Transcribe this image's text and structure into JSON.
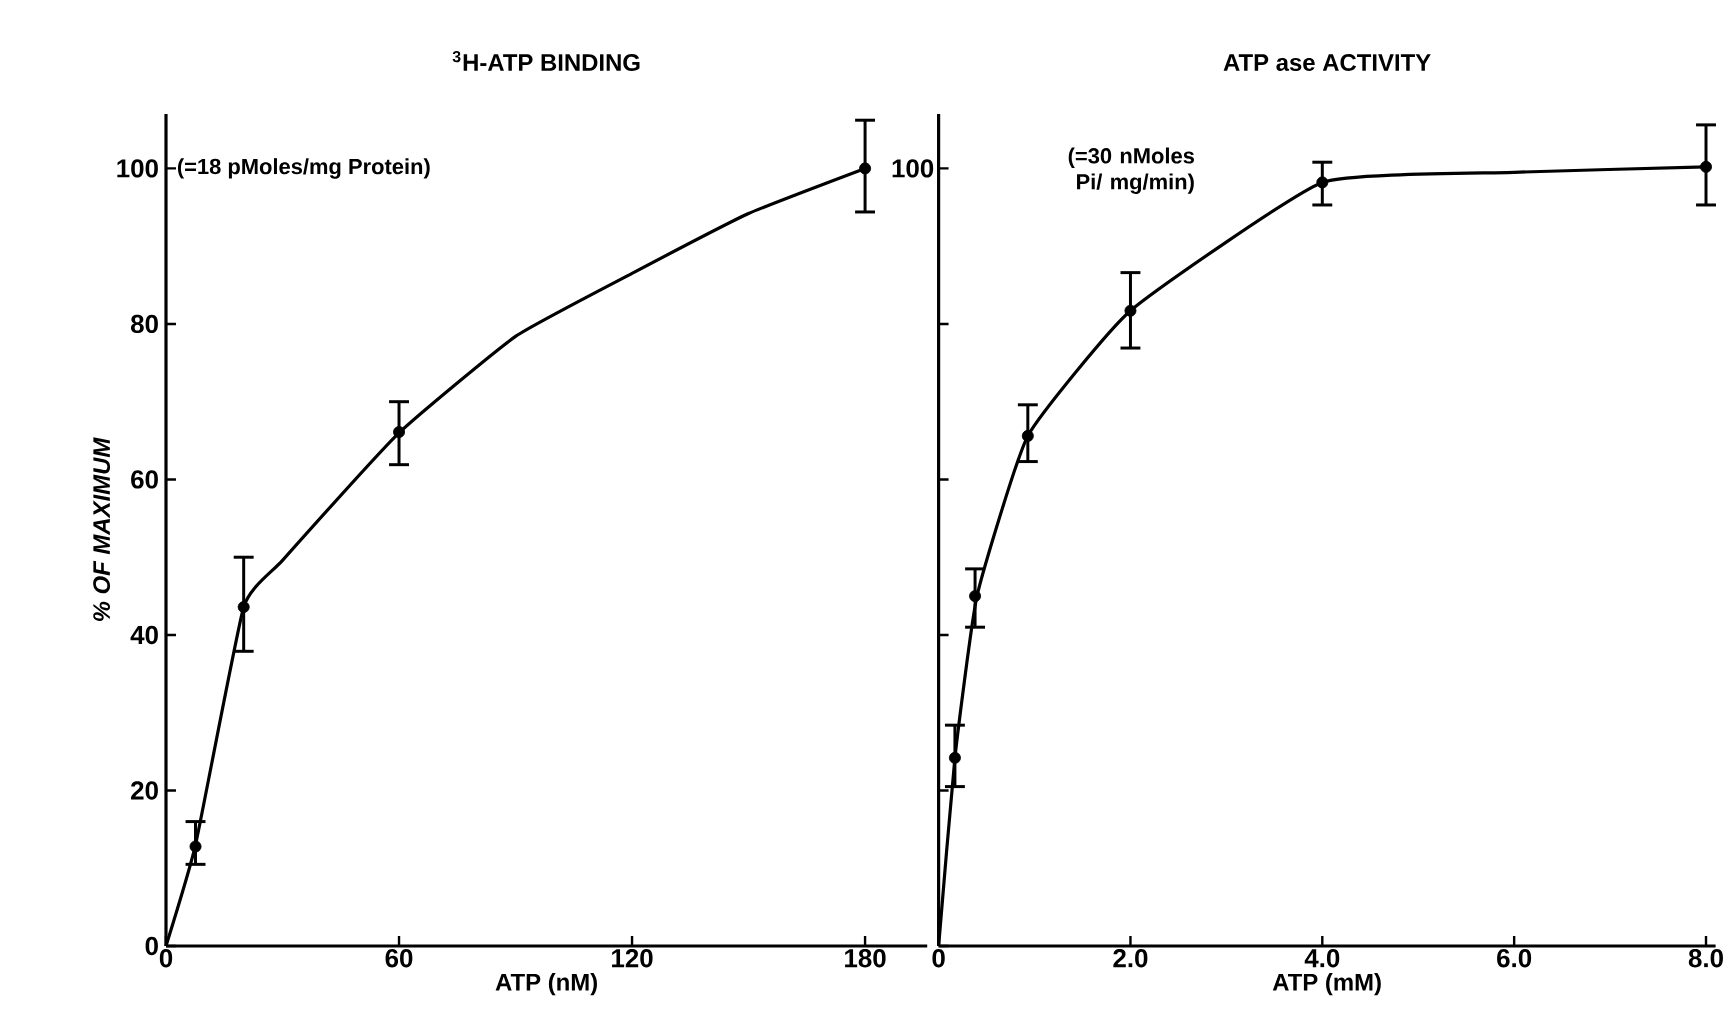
{
  "chart_data": [
    {
      "type": "line",
      "title": "$^{3}$H-ATP BINDING",
      "xlabel": "ATP (nM)",
      "ylabel": "% OF MAXIMUM",
      "xlim": [
        0,
        196
      ],
      "xticks": [
        0,
        60,
        120,
        180
      ],
      "ylim": [
        0,
        107
      ],
      "yticks": [
        0,
        20,
        40,
        60,
        80,
        100
      ],
      "annotations": [
        "(=18 pMoles/mg Protein)"
      ],
      "series": [
        {
          "type": "line",
          "marker": "none",
          "color": "#000000",
          "x": [
            0,
            7.6,
            20,
            30,
            60,
            90,
            120,
            150,
            180
          ],
          "values": [
            0,
            13,
            43.6,
            49.6,
            66,
            78.4,
            86.5,
            94.2,
            100
          ]
        },
        {
          "type": "scatter",
          "marker": "circle",
          "color": "#000000",
          "x": [
            7.6,
            20,
            60,
            180
          ],
          "values": [
            12.8,
            43.6,
            66.1,
            100
          ],
          "errors": [
            [
              10.5,
              16
            ],
            [
              37.9,
              50
            ],
            [
              61.9,
              70
            ],
            [
              94.4,
              106.2
            ]
          ]
        }
      ]
    },
    {
      "type": "line",
      "title": "ATP ase ACTIVITY",
      "xlabel": "ATP (mM)",
      "xlim": [
        0,
        8.1
      ],
      "xticks": [
        0,
        {
          "value": 2,
          "label": "2.0"
        },
        {
          "value": 4,
          "label": "4.0"
        },
        {
          "value": 6,
          "label": "6.0"
        },
        {
          "value": 8,
          "label": "8.0"
        }
      ],
      "ylim": [
        0,
        107
      ],
      "yticks": [
        0,
        20,
        40,
        60,
        80,
        100
      ],
      "tick_labels": "x",
      "annotations": [
        "100",
        "(=30 nMoles Pi/ mg/min)"
      ],
      "series": [
        {
          "type": "line",
          "marker": "none",
          "color": "#000000",
          "x": [
            0,
            0.17,
            0.4,
            0.93,
            2,
            4,
            6,
            8
          ],
          "values": [
            0,
            24.2,
            45,
            65.6,
            81.7,
            98.2,
            99.5,
            100.2
          ]
        },
        {
          "type": "scatter",
          "marker": "circle",
          "color": "#000000",
          "x": [
            0.17,
            0.38,
            0.93,
            2,
            4,
            8
          ],
          "values": [
            24.2,
            45,
            65.6,
            81.7,
            98.2,
            100.2
          ],
          "errors": [
            [
              20.5,
              28.4
            ],
            [
              41,
              48.5
            ],
            [
              62.3,
              69.6
            ],
            [
              76.9,
              86.6
            ],
            [
              95.3,
              100.8
            ],
            [
              95.3,
              105.6
            ]
          ]
        }
      ]
    }
  ]
}
